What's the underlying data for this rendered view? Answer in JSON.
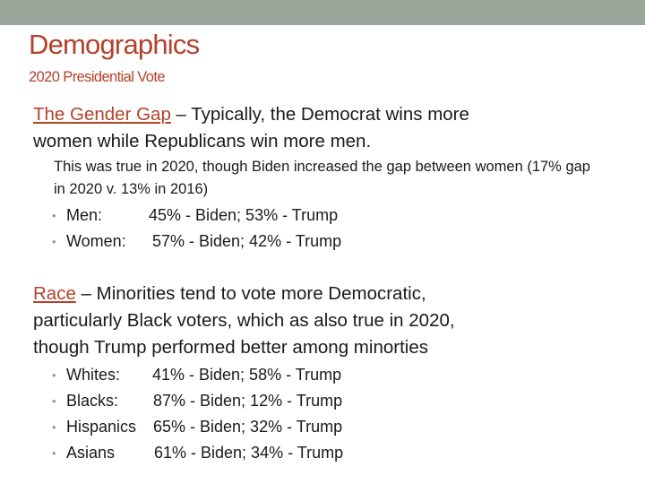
{
  "slide": {
    "title": "Demographics",
    "subtitle": "2020 Presidential Vote",
    "gender": {
      "term": "The Gender Gap",
      "heading_rest": " – Typically, the Democrat wins more\nwomen while Republicans win more men.",
      "note": "This was true in 2020, though Biden increased the gap between women (17% gap in 2020 v. 13% in 2016)",
      "items": [
        {
          "group": "Men:",
          "result": "45% - Biden; 53% - Trump"
        },
        {
          "group": "Women:",
          "result": "57% - Biden; 42% - Trump"
        }
      ]
    },
    "race": {
      "term": "Race",
      "heading_rest": " – Minorities tend to vote more Democratic,\nparticularly Black voters, which as also true in 2020,\nthough Trump performed better among minorties",
      "items": [
        {
          "group": "Whites:",
          "result": "41% - Biden; 58% - Trump"
        },
        {
          "group": "Blacks:",
          "result": "87% - Biden; 12% - Trump"
        },
        {
          "group": "Hispanics",
          "result": "65% - Biden; 32% - Trump"
        },
        {
          "group": "Asians",
          "result": "61% - Biden; 34% - Trump"
        }
      ]
    }
  }
}
